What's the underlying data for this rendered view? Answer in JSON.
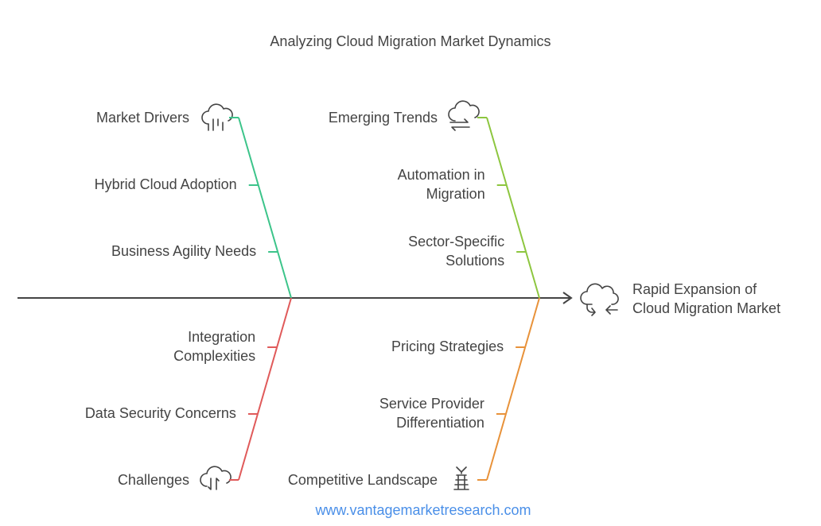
{
  "title": "Analyzing Cloud Migration Market Dynamics",
  "effect": {
    "lines": [
      "Rapid Expansion of",
      "Cloud Migration Market"
    ]
  },
  "branches": [
    {
      "label": "Market Drivers",
      "color": "#3cc48a",
      "causes": [
        {
          "lines": [
            "Hybrid Cloud Adoption"
          ]
        },
        {
          "lines": [
            "Business Agility Needs"
          ]
        }
      ]
    },
    {
      "label": "Emerging Trends",
      "color": "#8dc63f",
      "causes": [
        {
          "lines": [
            "Automation in",
            "Migration"
          ]
        },
        {
          "lines": [
            "Sector-Specific",
            "Solutions"
          ]
        }
      ]
    },
    {
      "label": "Challenges",
      "color": "#e05a5a",
      "causes": [
        {
          "lines": [
            "Integration",
            "Complexities"
          ]
        },
        {
          "lines": [
            "Data Security Concerns"
          ]
        }
      ]
    },
    {
      "label": "Competitive Landscape",
      "color": "#e8923a",
      "causes": [
        {
          "lines": [
            "Pricing Strategies"
          ]
        },
        {
          "lines": [
            "Service Provider",
            "Differentiation"
          ]
        }
      ]
    }
  ],
  "footer": "www.vantagemarketresearch.com"
}
